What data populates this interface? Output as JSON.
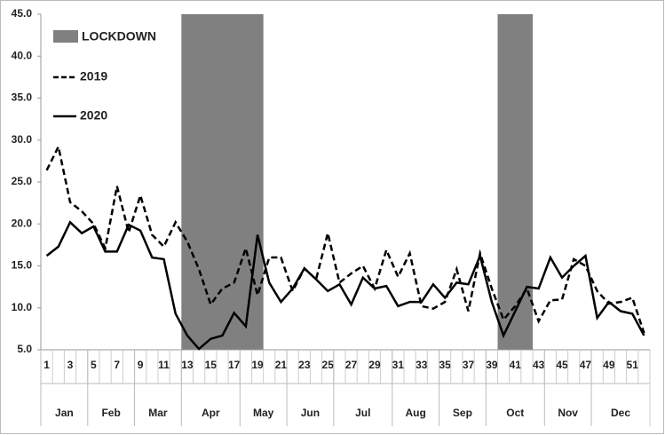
{
  "chart_data": {
    "type": "line",
    "categories": [
      1,
      null,
      3,
      null,
      5,
      null,
      7,
      null,
      9,
      null,
      11,
      null,
      13,
      null,
      15,
      null,
      17,
      null,
      19,
      null,
      21,
      null,
      23,
      null,
      25,
      null,
      27,
      null,
      29,
      null,
      31,
      null,
      33,
      null,
      35,
      null,
      37,
      null,
      39,
      null,
      41,
      null,
      43,
      null,
      45,
      null,
      47,
      null,
      49,
      null,
      51,
      null
    ],
    "months": [
      "Jan",
      "Feb",
      "Mar",
      "Apr",
      "May",
      "Jun",
      "Jul",
      "Aug",
      "Sep",
      "Oct",
      "Nov",
      "Dec"
    ],
    "month_weeks": [
      4,
      4,
      4,
      5,
      4,
      4,
      5,
      4,
      4,
      5,
      4,
      5
    ],
    "shaded": {
      "name": "LOCKDOWN",
      "color": "#808080",
      "ranges": [
        [
          13,
          19
        ],
        [
          40,
          42
        ]
      ]
    },
    "series": [
      {
        "name": "2019",
        "color": "#000000",
        "dashed": true,
        "values": [
          26.4,
          29.2,
          22.6,
          21.5,
          20.0,
          17.1,
          24.5,
          19.0,
          23.4,
          18.7,
          17.3,
          20.2,
          17.9,
          14.6,
          10.4,
          12.3,
          13.0,
          17.1,
          11.5,
          16.0,
          16.0,
          12.0,
          14.7,
          13.4,
          18.9,
          13.0,
          14.1,
          15.0,
          12.3,
          16.9,
          13.7,
          16.5,
          10.2,
          9.9,
          10.7,
          14.6,
          9.6,
          16.5,
          12.3,
          8.6,
          10.2,
          12.3,
          8.4,
          10.9,
          11.0,
          15.8,
          15.0,
          12.0,
          10.5,
          10.7,
          11.2,
          7.0
        ]
      },
      {
        "name": "2020",
        "color": "#000000",
        "dashed": false,
        "values": [
          16.2,
          17.3,
          20.2,
          18.9,
          19.7,
          16.7,
          16.7,
          19.9,
          19.2,
          16.0,
          15.8,
          9.3,
          6.7,
          5.1,
          6.3,
          6.7,
          9.4,
          7.8,
          18.7,
          13.0,
          10.7,
          12.3,
          14.7,
          13.4,
          12.0,
          12.8,
          10.4,
          13.6,
          12.3,
          12.6,
          10.2,
          10.7,
          10.7,
          12.8,
          11.2,
          13.0,
          12.8,
          16.2,
          10.7,
          6.7,
          9.6,
          12.5,
          12.3,
          16.0,
          13.6,
          15.0,
          16.2,
          8.8,
          10.7,
          9.6,
          9.3,
          6.7
        ]
      }
    ],
    "ylim": [
      5,
      45
    ],
    "yticks": [
      {
        "value": 5,
        "label": "5.0"
      },
      {
        "value": 10,
        "label": "10.0"
      },
      {
        "value": 15,
        "label": "15.0"
      },
      {
        "value": 20,
        "label": "20.0"
      },
      {
        "value": 25,
        "label": "25.0"
      },
      {
        "value": 30,
        "label": "30.0"
      },
      {
        "value": 35,
        "label": "35.0"
      },
      {
        "value": 40,
        "label": "40.0"
      },
      {
        "value": 45,
        "label": "45.0"
      }
    ],
    "legend": "top-left"
  }
}
